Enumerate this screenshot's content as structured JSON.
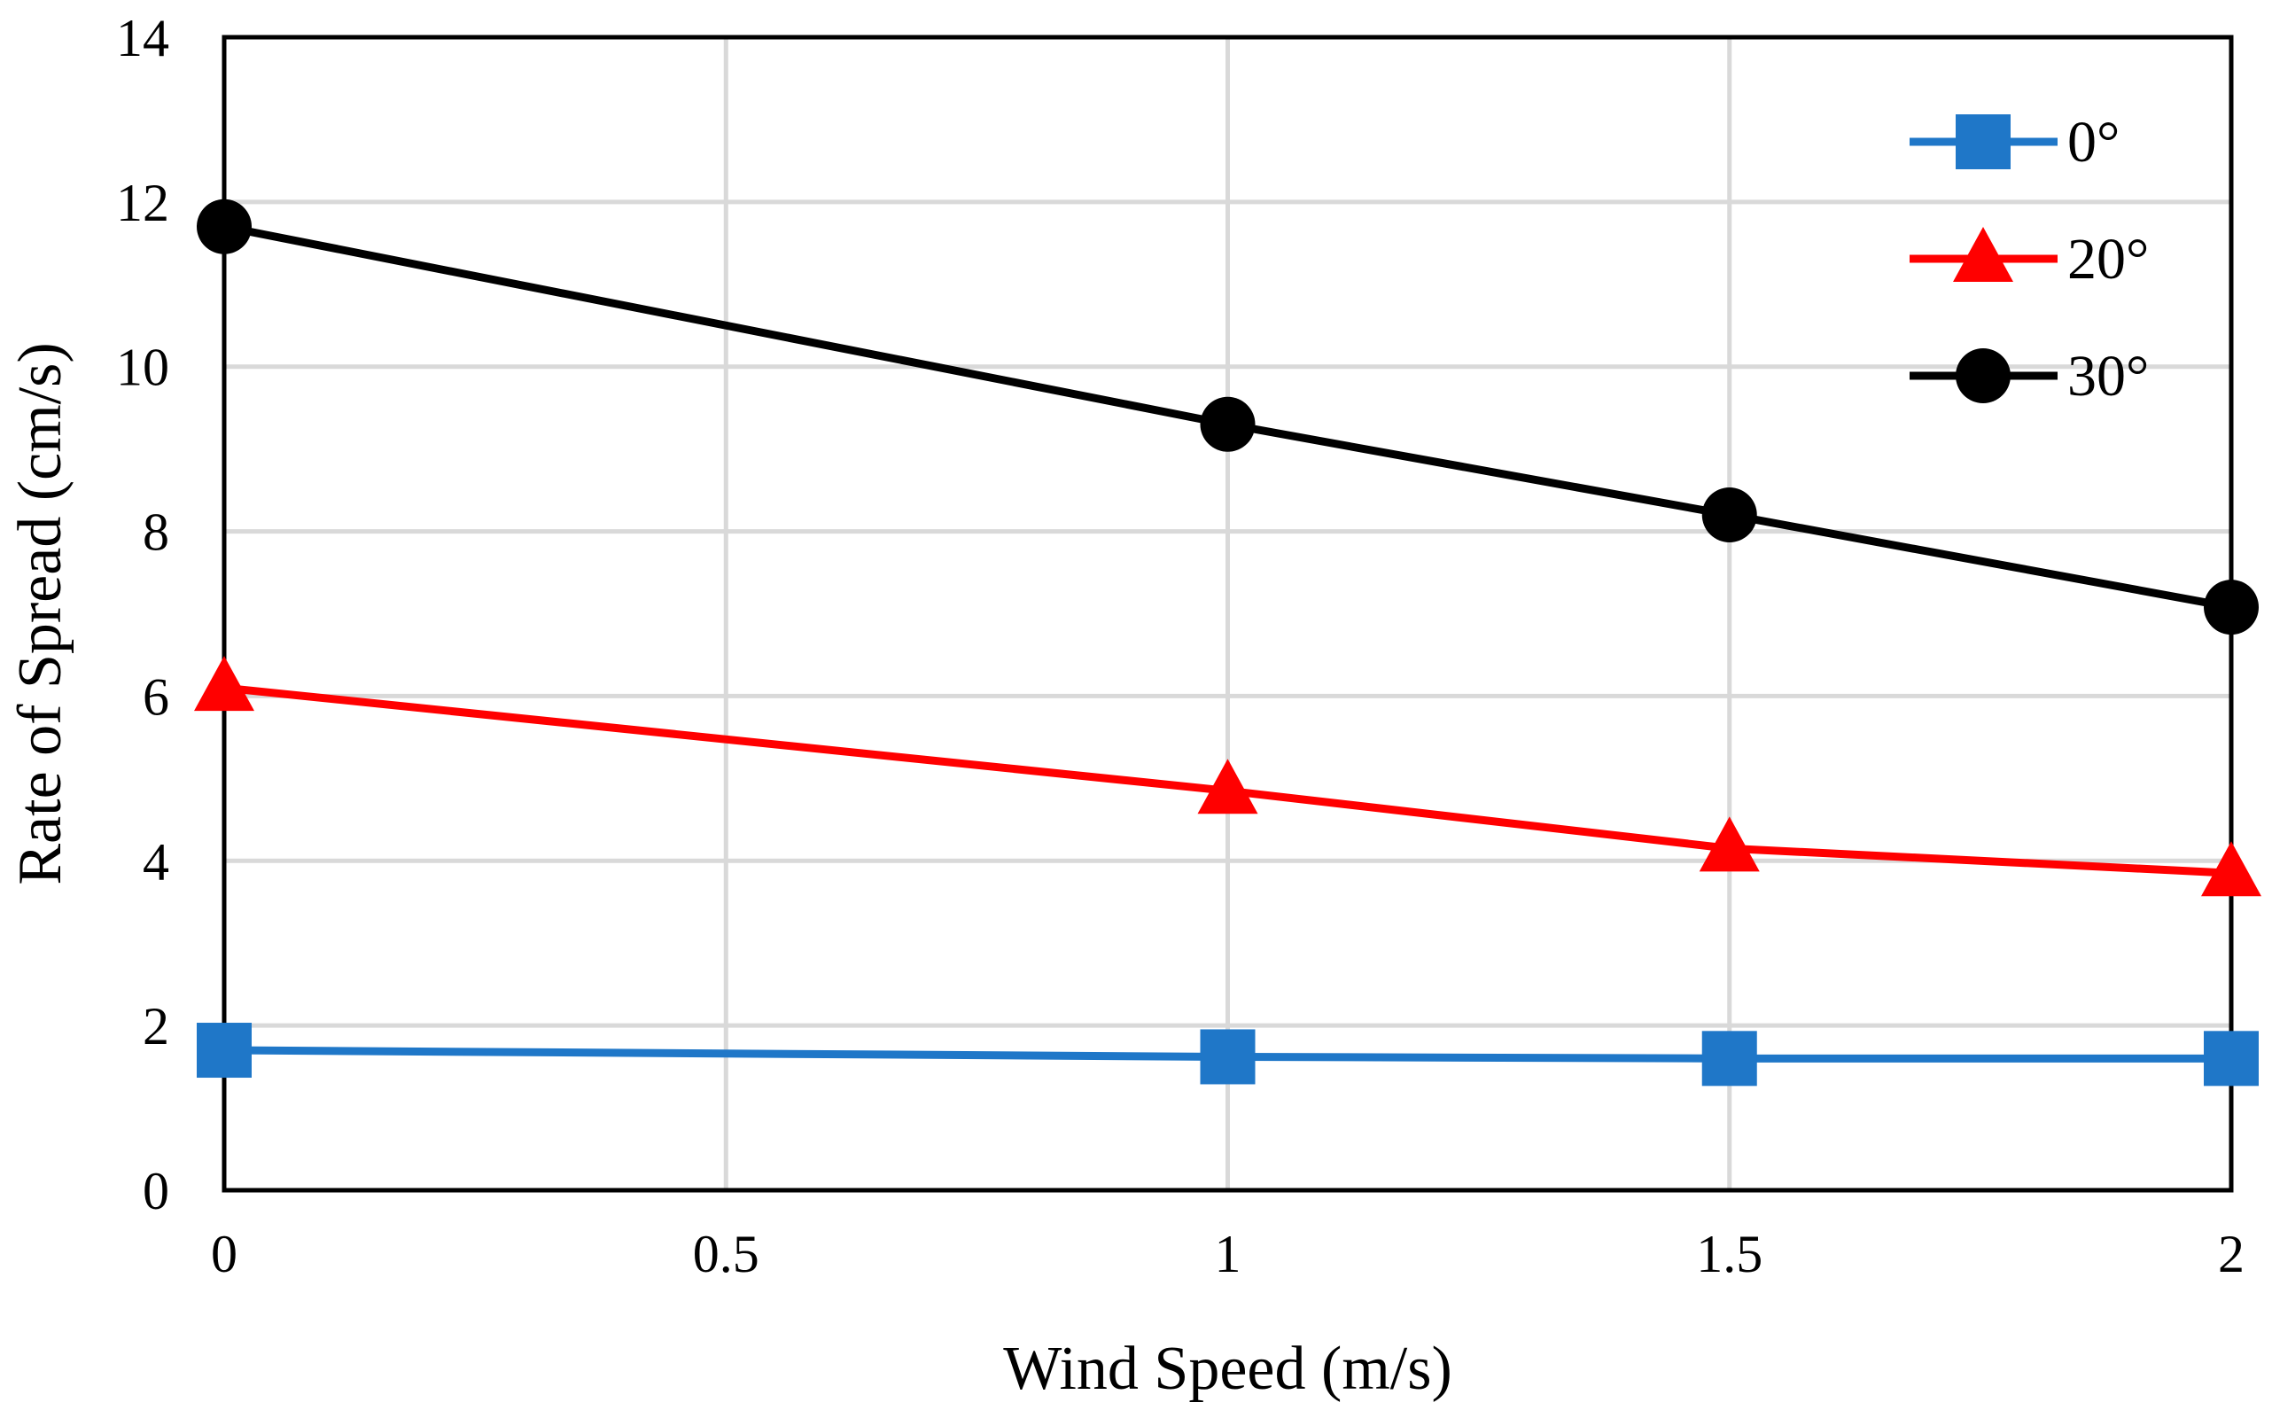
{
  "chart_data": {
    "type": "line",
    "title": "",
    "xlabel": "Wind Speed (m/s)",
    "ylabel": "Rate of Spread (cm/s)",
    "xlim": [
      0,
      2
    ],
    "ylim": [
      0,
      14
    ],
    "xticks": [
      0,
      0.5,
      1,
      1.5,
      2
    ],
    "xtick_labels": [
      "0",
      "0.5",
      "1",
      "1.5",
      "2"
    ],
    "yticks": [
      0,
      2,
      4,
      6,
      8,
      10,
      12,
      14
    ],
    "ytick_labels": [
      "0",
      "2",
      "4",
      "6",
      "8",
      "10",
      "12",
      "14"
    ],
    "grid": true,
    "legend_position": "top-right",
    "series": [
      {
        "name": "0°",
        "color": "#1f77c8",
        "marker": "square",
        "x": [
          0,
          1,
          1.5,
          2
        ],
        "values": [
          1.7,
          1.62,
          1.6,
          1.6
        ]
      },
      {
        "name": "20°",
        "color": "#ff0000",
        "marker": "triangle",
        "x": [
          0,
          1,
          1.5,
          2
        ],
        "values": [
          6.1,
          4.85,
          4.15,
          3.85
        ]
      },
      {
        "name": "30°",
        "color": "#000000",
        "marker": "circle",
        "x": [
          0,
          1,
          1.5,
          2
        ],
        "values": [
          11.7,
          9.3,
          8.2,
          7.08
        ]
      }
    ]
  }
}
